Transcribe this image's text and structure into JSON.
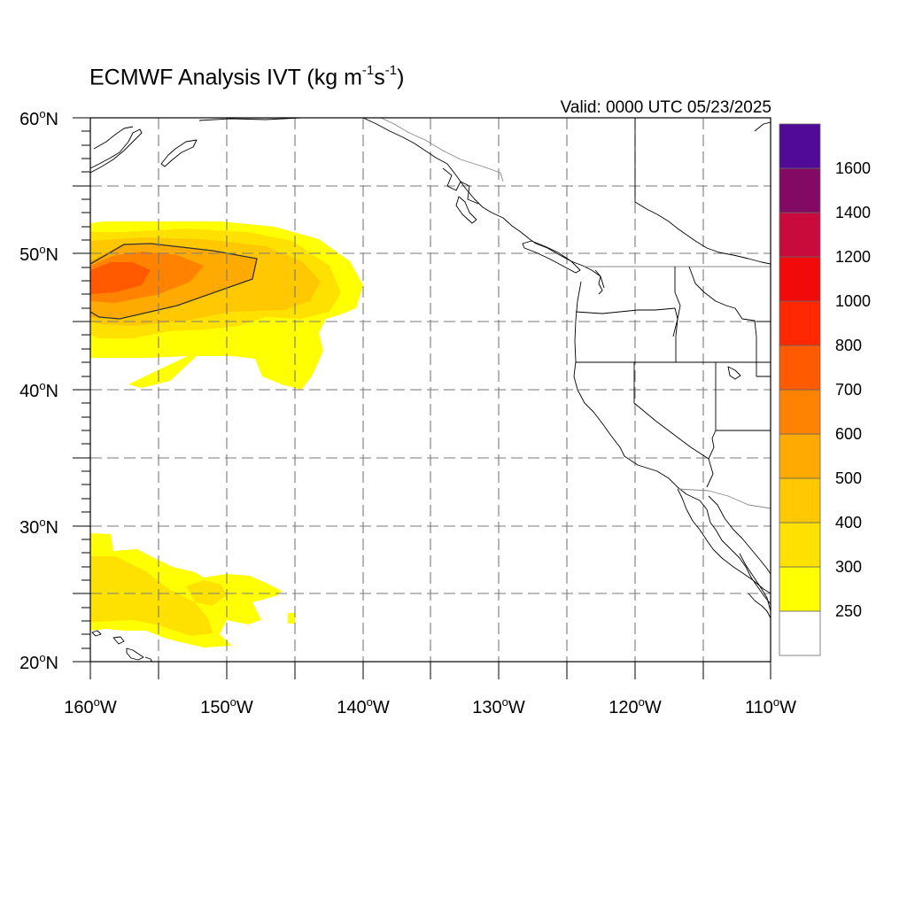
{
  "title": {
    "prefix": "ECMWF Analysis IVT (kg m",
    "exp1": "-1",
    "mid": "s",
    "exp2": "-1",
    "suffix": ")"
  },
  "valid_time": "Valid: 0000 UTC 05/23/2025",
  "map": {
    "region": "Northeast Pacific and western North America",
    "projection": "cylindrical equidistant",
    "lon_range": [
      -160,
      -110
    ],
    "lat_range": [
      20,
      60
    ],
    "gridline_style": "dashed",
    "grid_spacing_deg": 5,
    "lon_tick_labels": [
      {
        "lon": -160,
        "num": "160",
        "hemi": "W"
      },
      {
        "lon": -150,
        "num": "150",
        "hemi": "W"
      },
      {
        "lon": -140,
        "num": "140",
        "hemi": "W"
      },
      {
        "lon": -130,
        "num": "130",
        "hemi": "W"
      },
      {
        "lon": -120,
        "num": "120",
        "hemi": "W"
      },
      {
        "lon": -110,
        "num": "110",
        "hemi": "W"
      }
    ],
    "lat_tick_labels": [
      {
        "lat": 60,
        "num": "60",
        "hemi": "N"
      },
      {
        "lat": 50,
        "num": "50",
        "hemi": "N"
      },
      {
        "lat": 40,
        "num": "40",
        "hemi": "N"
      },
      {
        "lat": 30,
        "num": "30",
        "hemi": "N"
      },
      {
        "lat": 20,
        "num": "20",
        "hemi": "N"
      }
    ]
  },
  "colorbar": {
    "orientation": "vertical",
    "placement": "right",
    "levels": [
      250,
      300,
      400,
      500,
      600,
      700,
      800,
      1000,
      1200,
      1400,
      1600
    ],
    "colors": [
      "#ffffff",
      "#ffff00",
      "#ffe100",
      "#ffc800",
      "#ffaa00",
      "#ff8200",
      "#ff5a00",
      "#ff2800",
      "#f00a0a",
      "#c80a3c",
      "#820a64",
      "#500a96"
    ]
  },
  "ivt_features": [
    {
      "name": "North Pacific atmospheric river",
      "lon_range": [
        -160,
        -139
      ],
      "lat_range": [
        40,
        52
      ],
      "peak_ivt": 600,
      "peak_location": [
        -158,
        47.5
      ]
    },
    {
      "name": "Subtropical moisture near Hawaii",
      "lon_range": [
        -160,
        -145
      ],
      "lat_range": [
        20,
        29.5
      ],
      "peak_ivt": 300
    }
  ],
  "contour": {
    "level": 500,
    "color": "#333333"
  }
}
